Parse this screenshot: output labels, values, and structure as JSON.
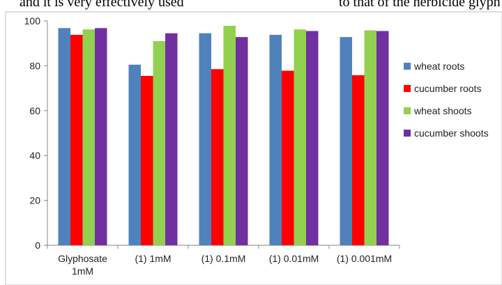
{
  "caption_fragment": {
    "left": "and it is very effectively used",
    "right": "to that of the herbicide glyph"
  },
  "chart_data": {
    "type": "bar",
    "categories": [
      [
        "Glyphosate",
        "1mM"
      ],
      [
        "(1) 1mM"
      ],
      [
        "(1) 0.1mM"
      ],
      [
        "(1) 0.01mM"
      ],
      [
        "(1) 0.001mM"
      ]
    ],
    "series": [
      {
        "name": "wheat roots",
        "color": "#4f81bd",
        "values": [
          96.8,
          80.5,
          94.5,
          93.8,
          92.8
        ]
      },
      {
        "name": "cucumber roots",
        "color": "#ff0000",
        "values": [
          93.8,
          75.5,
          78.5,
          77.8,
          75.8
        ]
      },
      {
        "name": "wheat shoots",
        "color": "#92d050",
        "values": [
          96.2,
          91.0,
          97.8,
          96.2,
          95.8
        ]
      },
      {
        "name": "cucumber shoots",
        "color": "#7030a0",
        "values": [
          96.8,
          94.5,
          92.8,
          95.5,
          95.5
        ]
      }
    ],
    "y_ticks": [
      0,
      20,
      40,
      60,
      80,
      100
    ],
    "ylim": [
      0,
      100
    ],
    "legend": "right",
    "grid": false
  }
}
